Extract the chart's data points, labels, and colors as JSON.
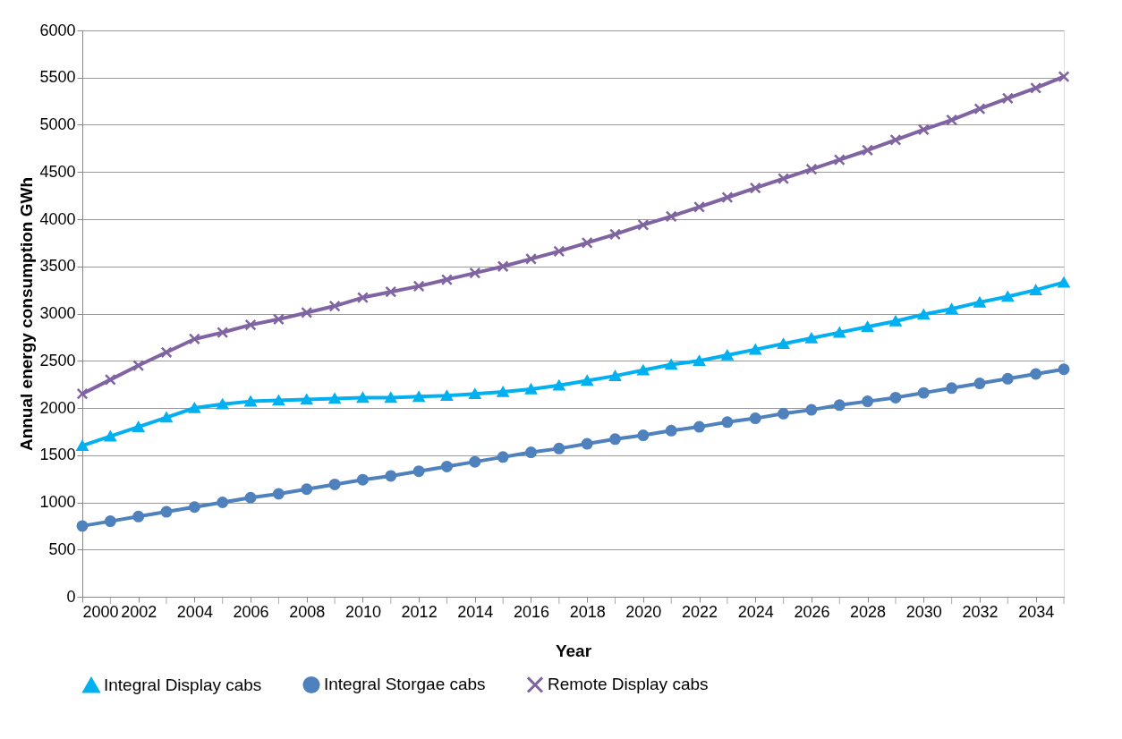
{
  "chart_data": {
    "type": "line",
    "xlabel": "Year",
    "ylabel": "Annual energy consumption GWh",
    "x": [
      2000,
      2001,
      2002,
      2003,
      2004,
      2005,
      2006,
      2007,
      2008,
      2009,
      2010,
      2011,
      2012,
      2013,
      2014,
      2015,
      2016,
      2017,
      2018,
      2019,
      2020,
      2021,
      2022,
      2023,
      2024,
      2025,
      2026,
      2027,
      2028,
      2029,
      2030,
      2031,
      2032,
      2033,
      2034,
      2035
    ],
    "series": [
      {
        "name": "Integral Display cabs",
        "color": "#00b0f0",
        "marker": "triangle",
        "values": [
          1600,
          1700,
          1800,
          1900,
          2000,
          2040,
          2070,
          2080,
          2090,
          2100,
          2110,
          2110,
          2120,
          2130,
          2150,
          2170,
          2200,
          2240,
          2290,
          2340,
          2400,
          2460,
          2500,
          2560,
          2620,
          2680,
          2740,
          2800,
          2860,
          2920,
          2990,
          3050,
          3120,
          3180,
          3250,
          3330
        ]
      },
      {
        "name": "Integral Storgae cabs",
        "color": "#4f81bd",
        "marker": "circle",
        "values": [
          750,
          800,
          850,
          900,
          950,
          1000,
          1050,
          1090,
          1140,
          1190,
          1240,
          1280,
          1330,
          1380,
          1430,
          1480,
          1530,
          1570,
          1620,
          1670,
          1710,
          1760,
          1800,
          1850,
          1890,
          1940,
          1980,
          2030,
          2070,
          2110,
          2160,
          2210,
          2260,
          2310,
          2360,
          2410
        ]
      },
      {
        "name": "Remote Display cabs",
        "color": "#8064a2",
        "marker": "cross",
        "values": [
          2150,
          2300,
          2450,
          2590,
          2730,
          2800,
          2880,
          2940,
          3010,
          3080,
          3170,
          3230,
          3290,
          3360,
          3430,
          3500,
          3580,
          3660,
          3750,
          3840,
          3940,
          4030,
          4130,
          4230,
          4330,
          4430,
          4530,
          4630,
          4730,
          4840,
          4950,
          5050,
          5170,
          5280,
          5390,
          5510
        ]
      }
    ],
    "xlim": [
      2000,
      2035
    ],
    "xticks": [
      2000,
      {
        "value": 2001,
        "label": null
      },
      2002,
      {
        "value": 2003,
        "label": null
      },
      2004,
      {
        "value": 2005,
        "label": null
      },
      2006,
      {
        "value": 2007,
        "label": null
      },
      2008,
      {
        "value": 2009,
        "label": null
      },
      2010,
      {
        "value": 2011,
        "label": null
      },
      2012,
      {
        "value": 2013,
        "label": null
      },
      2014,
      {
        "value": 2015,
        "label": null
      },
      2016,
      {
        "value": 2017,
        "label": null
      },
      2018,
      {
        "value": 2019,
        "label": null
      },
      2020,
      {
        "value": 2021,
        "label": null
      },
      2022,
      {
        "value": 2023,
        "label": null
      },
      2024,
      {
        "value": 2025,
        "label": null
      },
      2026,
      {
        "value": 2027,
        "label": null
      },
      2028,
      {
        "value": 2029,
        "label": null
      },
      2030,
      {
        "value": 2031,
        "label": null
      },
      2032,
      {
        "value": 2033,
        "label": null
      },
      2034,
      {
        "value": 2035,
        "label": null
      }
    ],
    "ylim": [
      0,
      6000
    ],
    "yticks": [
      0,
      500,
      1000,
      1500,
      2000,
      2500,
      3000,
      3500,
      4000,
      4500,
      5000,
      5500,
      6000
    ],
    "grid": "y",
    "legend": "bottom",
    "line_style": "solid"
  }
}
